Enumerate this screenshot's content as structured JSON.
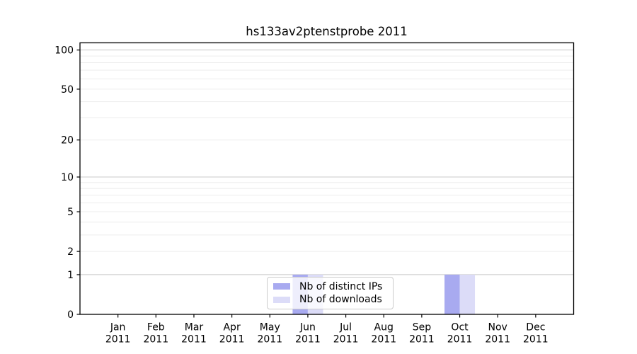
{
  "title": "hs133av2ptenstprobe 2011",
  "legend": {
    "items": [
      {
        "label": "Nb of distinct IPs",
        "color": "#a8aaf0"
      },
      {
        "label": "Nb of downloads",
        "color": "#dcdcf8"
      }
    ],
    "position": "lower center"
  },
  "colors": {
    "bar_distinct_ips": "#a8aaf0",
    "bar_downloads": "#dcdcf8",
    "grid_major": "#c8c8c8",
    "grid_minor": "#ededed",
    "spine": "#000000",
    "text": "#000000",
    "background": "#ffffff"
  },
  "chart_data": {
    "type": "bar",
    "title": "hs133av2ptenstprobe 2011",
    "categories": [
      "Jan 2011",
      "Feb 2011",
      "Mar 2011",
      "Apr 2011",
      "May 2011",
      "Jun 2011",
      "Jul 2011",
      "Aug 2011",
      "Sep 2011",
      "Oct 2011",
      "Nov 2011",
      "Dec 2011"
    ],
    "series": [
      {
        "name": "Nb of distinct IPs",
        "values": [
          0,
          0,
          0,
          0,
          0,
          1,
          0,
          0,
          0,
          1,
          0,
          0
        ]
      },
      {
        "name": "Nb of downloads",
        "values": [
          0,
          0,
          0,
          0,
          0,
          1,
          0,
          0,
          0,
          1,
          0,
          0
        ]
      }
    ],
    "xlabel": "",
    "ylabel": "",
    "y_scale": "log1p",
    "y_ticks": [
      0,
      1,
      2,
      5,
      10,
      20,
      50,
      100
    ],
    "y_minor_gridlines": [
      2,
      3,
      4,
      5,
      6,
      7,
      8,
      9,
      20,
      30,
      40,
      50,
      60,
      70,
      80,
      90
    ],
    "y_major_gridlines": [
      1,
      10,
      100
    ],
    "ylim": [
      0,
      113.5
    ],
    "grid": "horizontal",
    "legend_position": "lower center"
  }
}
